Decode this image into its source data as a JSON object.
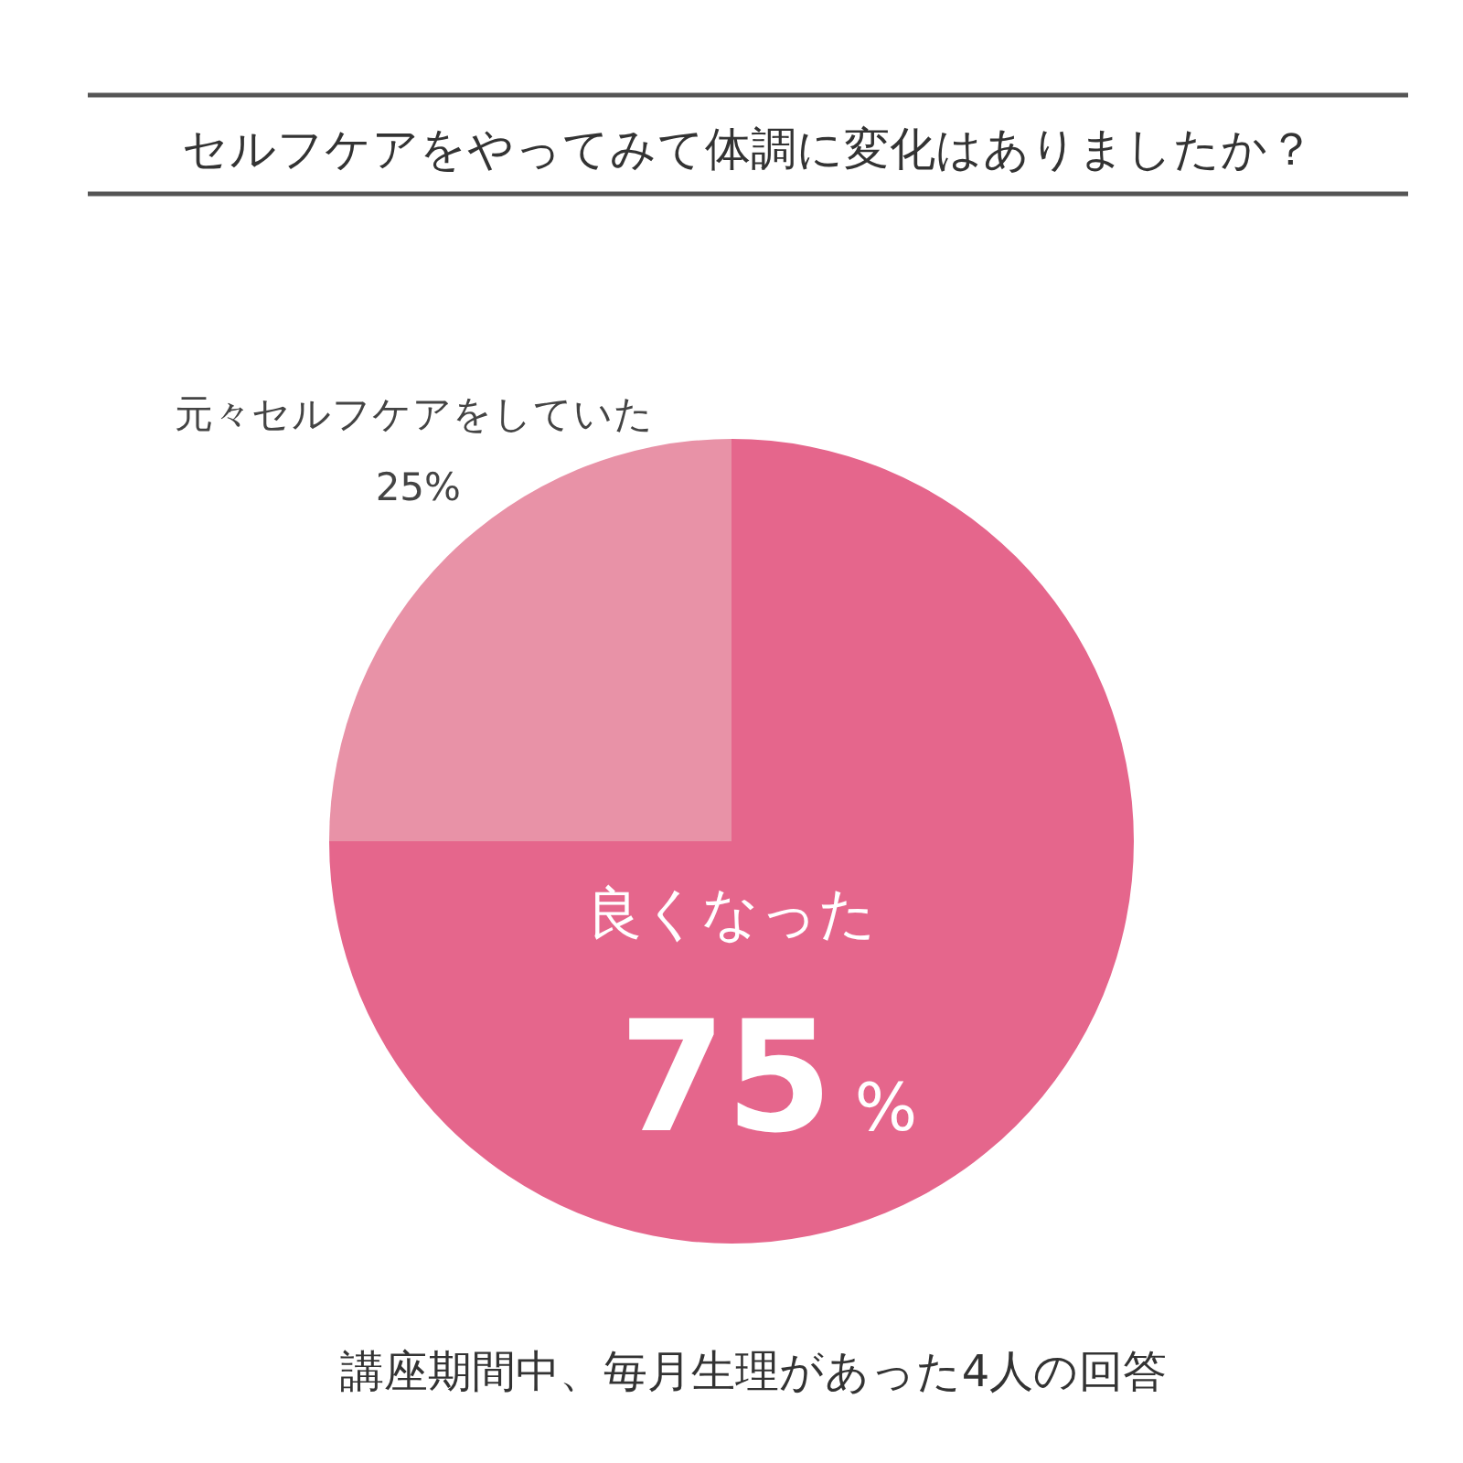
{
  "chart_data": {
    "type": "pie",
    "title": "セルフケアをやってみて体調に変化はありましたか？",
    "categories": [
      "良くなった",
      "元々セルフケアをしていた"
    ],
    "values": [
      75,
      25
    ],
    "colors": [
      "#e5668c",
      "#e892a7"
    ],
    "value_labels": [
      "75%",
      "25%"
    ],
    "annotations": [
      "講座期間中、毎月生理があった4人の回答"
    ]
  }
}
